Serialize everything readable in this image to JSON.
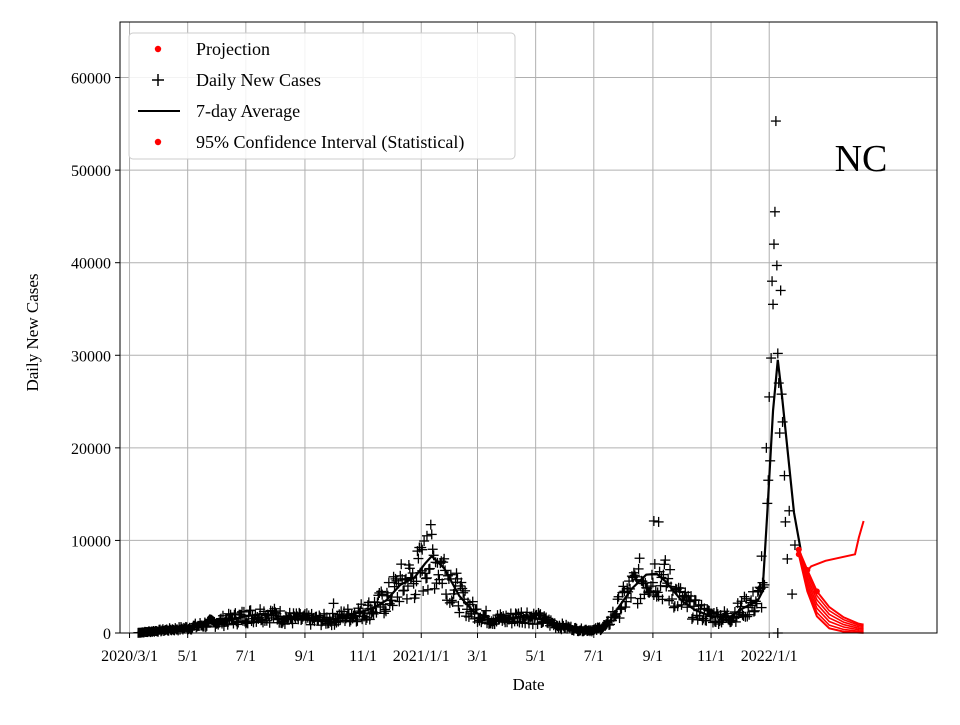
{
  "chart_data": {
    "type": "line",
    "region_label": "NC",
    "xlabel": "Date",
    "ylabel": "Daily New Cases",
    "ylim": [
      0,
      66000
    ],
    "xlim": [
      "2020-02-20",
      "2022-06-26"
    ],
    "grid": true,
    "legend_position": "top-left",
    "y_ticks": [
      0,
      10000,
      20000,
      30000,
      40000,
      50000,
      60000
    ],
    "x_ticks": [
      {
        "date": "2020-03-01",
        "label": "2020/3/1"
      },
      {
        "date": "2020-05-01",
        "label": "5/1"
      },
      {
        "date": "2020-07-01",
        "label": "7/1"
      },
      {
        "date": "2020-09-01",
        "label": "9/1"
      },
      {
        "date": "2020-11-01",
        "label": "11/1"
      },
      {
        "date": "2021-01-01",
        "label": "2021/1/1"
      },
      {
        "date": "2021-03-01",
        "label": "3/1"
      },
      {
        "date": "2021-05-01",
        "label": "5/1"
      },
      {
        "date": "2021-07-01",
        "label": "7/1"
      },
      {
        "date": "2021-09-01",
        "label": "9/1"
      },
      {
        "date": "2021-11-01",
        "label": "11/1"
      },
      {
        "date": "2022-01-01",
        "label": "2022/1/1"
      }
    ],
    "legend": [
      {
        "label": "Projection",
        "marker": "dot",
        "color": "#ff0000"
      },
      {
        "label": "Daily New Cases",
        "marker": "plus",
        "color": "#000000"
      },
      {
        "label": "7-day Average",
        "marker": "line",
        "color": "#000000"
      },
      {
        "label": "95% Confidence Interval (Statistical)",
        "marker": "dot",
        "color": "#ff0000"
      }
    ],
    "series": [
      {
        "name": "7-day Average",
        "color": "#000000",
        "points": [
          [
            "2020-03-10",
            20
          ],
          [
            "2020-04-01",
            250
          ],
          [
            "2020-05-01",
            550
          ],
          [
            "2020-06-01",
            1200
          ],
          [
            "2020-07-01",
            1800
          ],
          [
            "2020-07-20",
            2100
          ],
          [
            "2020-08-15",
            1600
          ],
          [
            "2020-09-15",
            1400
          ],
          [
            "2020-10-01",
            1500
          ],
          [
            "2020-10-20",
            2000
          ],
          [
            "2020-11-10",
            2600
          ],
          [
            "2020-11-25",
            3500
          ],
          [
            "2020-12-10",
            5200
          ],
          [
            "2020-12-25",
            6000
          ],
          [
            "2021-01-05",
            7500
          ],
          [
            "2021-01-12",
            8300
          ],
          [
            "2021-01-25",
            7000
          ],
          [
            "2021-02-10",
            4000
          ],
          [
            "2021-02-25",
            2300
          ],
          [
            "2021-03-15",
            1500
          ],
          [
            "2021-04-01",
            1500
          ],
          [
            "2021-04-20",
            1900
          ],
          [
            "2021-05-05",
            1500
          ],
          [
            "2021-05-25",
            800
          ],
          [
            "2021-06-15",
            350
          ],
          [
            "2021-07-01",
            300
          ],
          [
            "2021-07-15",
            800
          ],
          [
            "2021-07-25",
            2500
          ],
          [
            "2021-08-10",
            4800
          ],
          [
            "2021-08-25",
            6300
          ],
          [
            "2021-09-05",
            6400
          ],
          [
            "2021-09-15",
            5500
          ],
          [
            "2021-10-01",
            3500
          ],
          [
            "2021-10-15",
            2500
          ],
          [
            "2021-11-01",
            1800
          ],
          [
            "2021-11-20",
            1700
          ],
          [
            "2021-12-05",
            2700
          ],
          [
            "2021-12-20",
            3500
          ],
          [
            "2021-12-25",
            4500
          ],
          [
            "2021-12-30",
            13000
          ],
          [
            "2022-01-05",
            24000
          ],
          [
            "2022-01-10",
            29500
          ],
          [
            "2022-01-14",
            26000
          ],
          [
            "2022-01-20",
            20000
          ],
          [
            "2022-01-27",
            13000
          ],
          [
            "2022-02-03",
            9000
          ]
        ]
      },
      {
        "name": "Daily New Cases",
        "color": "#000000",
        "marker": "plus",
        "outliers": [
          [
            "2021-12-29",
            20000
          ],
          [
            "2022-01-01",
            25500
          ],
          [
            "2022-01-03",
            29700
          ],
          [
            "2022-01-04",
            38000
          ],
          [
            "2022-01-05",
            35500
          ],
          [
            "2022-01-06",
            42000
          ],
          [
            "2022-01-07",
            45500
          ],
          [
            "2022-01-08",
            55300
          ],
          [
            "2022-01-09",
            39700
          ],
          [
            "2022-01-10",
            30200
          ],
          [
            "2022-01-11",
            27000
          ],
          [
            "2022-01-12",
            21600
          ],
          [
            "2022-01-13",
            37000
          ],
          [
            "2022-01-14",
            25800
          ],
          [
            "2022-01-15",
            22800
          ],
          [
            "2022-01-17",
            17000
          ],
          [
            "2022-01-18",
            12000
          ],
          [
            "2022-01-20",
            8000
          ],
          [
            "2022-01-22",
            13200
          ],
          [
            "2022-01-25",
            4200
          ],
          [
            "2022-01-28",
            9500
          ],
          [
            "2021-12-31",
            16500
          ],
          [
            "2022-01-02",
            18600
          ],
          [
            "2021-12-30",
            14000
          ],
          [
            "2021-12-27",
            5200
          ],
          [
            "2021-12-24",
            8300
          ],
          [
            "2022-01-10",
            0
          ],
          [
            "2020-10-01",
            3200
          ],
          [
            "2021-09-02",
            12100
          ],
          [
            "2021-09-07",
            12000
          ],
          [
            "2021-01-07",
            10500
          ],
          [
            "2021-01-02",
            9000
          ]
        ]
      },
      {
        "name": "Projection",
        "color": "#ff0000",
        "points": [
          [
            "2022-02-01",
            8500
          ],
          [
            "2022-02-08",
            6500
          ],
          [
            "2022-02-14",
            7200
          ],
          [
            "2022-03-01",
            7800
          ],
          [
            "2022-04-01",
            8500
          ],
          [
            "2022-04-05",
            10300
          ],
          [
            "2022-04-10",
            12100
          ]
        ]
      },
      {
        "name": "95% Confidence Interval (Statistical)",
        "color": "#ff0000",
        "lower": [
          [
            "2022-02-01",
            8500
          ],
          [
            "2022-02-10",
            4500
          ],
          [
            "2022-02-20",
            1800
          ],
          [
            "2022-03-05",
            500
          ],
          [
            "2022-03-20",
            150
          ],
          [
            "2022-04-05",
            40
          ],
          [
            "2022-04-10",
            20
          ]
        ],
        "upper": [
          [
            "2022-02-01",
            9000
          ],
          [
            "2022-02-10",
            6800
          ],
          [
            "2022-02-20",
            4500
          ],
          [
            "2022-03-05",
            2800
          ],
          [
            "2022-03-20",
            1700
          ],
          [
            "2022-04-05",
            1000
          ],
          [
            "2022-04-10",
            900
          ]
        ]
      }
    ]
  }
}
